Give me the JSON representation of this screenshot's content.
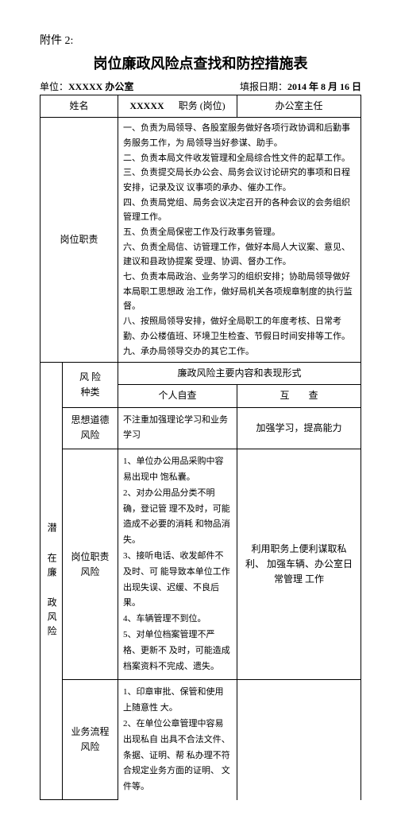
{
  "attachment_label": "附件 2:",
  "title": "岗位廉政风险点查找和防控措施表",
  "unit_label": "单位：",
  "unit_value": "XXXXX 办公室",
  "date_label": "填报日期：",
  "date_value": "2014 年 8 月 16 日",
  "header": {
    "name_label": "姓名",
    "name_value": "XXXXX",
    "post_label": "职务 (岗位)",
    "post_value": "办公室主任"
  },
  "duties_label": "岗位职责",
  "duties_text": "一、负责为局领导、各股室服务做好各项行政协调和后勤事务服务工作，为 局领导当好参谋、助手。\n二、负责本局文件收发管理和全局综合性文件的起草工作。\n三、负责提交局长办公会、局务会议讨论研究的事项和日程 安排，记录及议 议事项的承办、催办工作。\n四、负责局党组、局务会议决定召开的各种会议的会务组织管理工作。\n五、负责全局保密工作及行政事务管理。\n六、负责全局信、访管理工作，做好本局人大议案、意见、建议和县政协提案 受理、协调、督办工作。\n七、负责本局政治、业务学习的组织安排；协助局领导做好本局职工思想政 治工作，做好局机关各项规章制度的执行监督。\n八、按照局领导安排，做好全局职工的年度考核、日常考勤、办公楼值班、环境卫生检查、节假日时间安排等工作。\n九、承办局领导交办的其它工作。",
  "risk_category_label": "风 险\n种类",
  "risk_main_header": "廉政风险主要内容和表现形式",
  "self_check_label": "个人自查",
  "mutual_check_label": "互　　查",
  "potential_risk_label": "潜 在廉 政风险",
  "rows": {
    "moral": {
      "cat": "思想道德 风险",
      "self": "不注重加强理论学习和业务学习",
      "mutual": "加强学习，提高能力"
    },
    "post": {
      "cat": "岗位职责 风险",
      "self": "1、单位办公用品采购中容易出现中 饱私囊。\n2、对办公用品分类不明确，登记管 理不及时，可能造成不必要的消耗 和物品消失。\n3、接听电话、收发邮件不及时、可 能导致本单位工作出现失误、迟缓、不良后果。\n4、车辆管理不到位。\n5、对单位档案管理不严格、更新不 及时，可能造成档案资料不完成、遗失。",
      "mutual": "利用职务上便利谋取私利、 加强车辆、办公室日常管理 工作"
    },
    "process": {
      "cat": "业务流程 风险",
      "self": "1、印章审批、保管和使用上随意性 大。\n2、在单位公章管理中容易出现私自 出具不合法文件、条据、证明、帮 私办理不符合规定业务方面的证明、 文件等。",
      "mutual": ""
    }
  }
}
